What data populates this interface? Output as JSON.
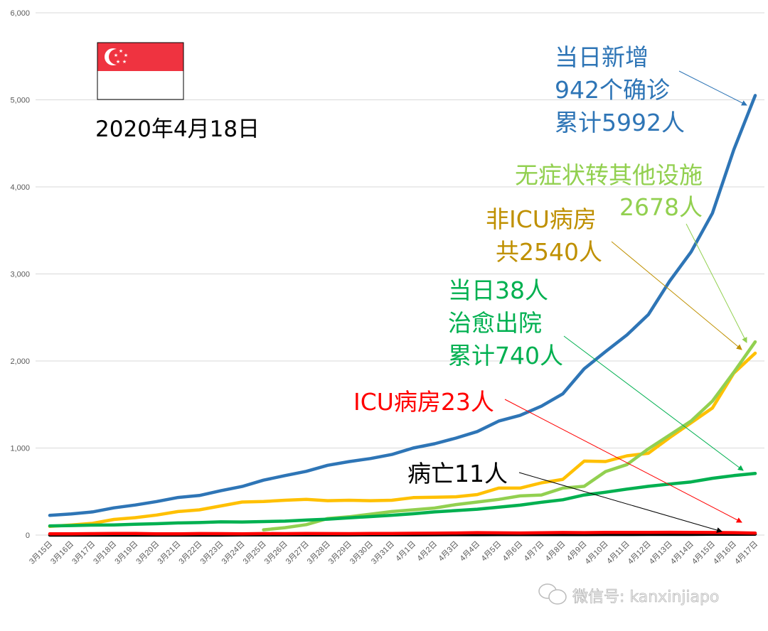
{
  "flag_country": "Singapore",
  "date_label": "2020年4月18日",
  "watermark": "微信号: kanxinjiapo",
  "annotations": {
    "confirmed": [
      "当日新增",
      "942个确诊",
      "累计5992人"
    ],
    "asymptomatic": [
      "无症状转其他设施",
      "2678人"
    ],
    "non_icu": [
      "非ICU病房",
      "共2540人"
    ],
    "discharged": [
      "当日38人",
      "治愈出院",
      "累计740人"
    ],
    "icu": [
      "ICU病房23人"
    ],
    "deaths": [
      "病亡11人"
    ]
  },
  "chart_data": {
    "type": "line",
    "ylim": [
      0,
      6000
    ],
    "yticks": [
      "0",
      "1,000",
      "2,000",
      "3,000",
      "4,000",
      "5,000",
      "6,000"
    ],
    "grid": true,
    "categories": [
      "3月15日",
      "3月16日",
      "3月17日",
      "3月18日",
      "3月19日",
      "3月20日",
      "3月21日",
      "3月22日",
      "3月23日",
      "3月24日",
      "3月25日",
      "3月26日",
      "3月27日",
      "3月28日",
      "3月29日",
      "3月30日",
      "3月31日",
      "4月1日",
      "4月2日",
      "4月3日",
      "4月4日",
      "4月5日",
      "4月6日",
      "4月7日",
      "4月8日",
      "4月9日",
      "4月10日",
      "4月11日",
      "4月12日",
      "4月13日",
      "4月14日",
      "4月15日",
      "4月16日",
      "4月17日"
    ],
    "series": [
      {
        "key": "confirmed",
        "color": "#2e75b6",
        "values": [
          226,
          243,
          266,
          313,
          345,
          385,
          432,
          455,
          509,
          558,
          631,
          683,
          732,
          802,
          844,
          879,
          926,
          1000,
          1049,
          1114,
          1189,
          1309,
          1375,
          1481,
          1623,
          1910,
          2108,
          2299,
          2532,
          2918,
          3252,
          3699,
          4427,
          5050
        ]
      },
      {
        "key": "non_icu",
        "color": "#ffc000",
        "values": [
          100,
          115,
          135,
          180,
          200,
          230,
          270,
          290,
          335,
          380,
          385,
          400,
          410,
          395,
          400,
          395,
          400,
          430,
          435,
          440,
          465,
          540,
          540,
          600,
          640,
          850,
          845,
          910,
          940,
          1120,
          1290,
          1460,
          1860,
          2090
        ]
      },
      {
        "key": "asymptomatic",
        "color": "#92d050",
        "values": [
          null,
          null,
          null,
          null,
          null,
          null,
          null,
          null,
          null,
          null,
          60,
          85,
          120,
          190,
          210,
          240,
          270,
          290,
          310,
          350,
          380,
          410,
          450,
          460,
          540,
          560,
          730,
          810,
          990,
          1150,
          1310,
          1540,
          1870,
          2220
        ]
      },
      {
        "key": "discharged",
        "color": "#00b050",
        "values": [
          105,
          109,
          114,
          117,
          124,
          131,
          140,
          144,
          152,
          150,
          155,
          160,
          172,
          183,
          198,
          212,
          228,
          245,
          266,
          282,
          297,
          320,
          344,
          377,
          406,
          460,
          492,
          528,
          560,
          586,
          611,
          652,
          683,
          708
        ]
      },
      {
        "key": "deaths",
        "color": "#000000",
        "values": [
          0,
          0,
          0,
          0,
          0,
          0,
          0,
          0,
          0,
          2,
          2,
          2,
          2,
          2,
          2,
          3,
          3,
          3,
          4,
          5,
          5,
          6,
          6,
          6,
          6,
          6,
          7,
          7,
          8,
          8,
          8,
          10,
          10,
          11
        ]
      },
      {
        "key": "icu",
        "color": "#ff0000",
        "values": [
          15,
          14,
          16,
          18,
          19,
          15,
          14,
          17,
          16,
          15,
          17,
          16,
          18,
          17,
          16,
          18,
          19,
          20,
          21,
          24,
          28,
          25,
          24,
          26,
          29,
          28,
          30,
          31,
          30,
          32,
          31,
          29,
          28,
          23
        ]
      }
    ]
  }
}
